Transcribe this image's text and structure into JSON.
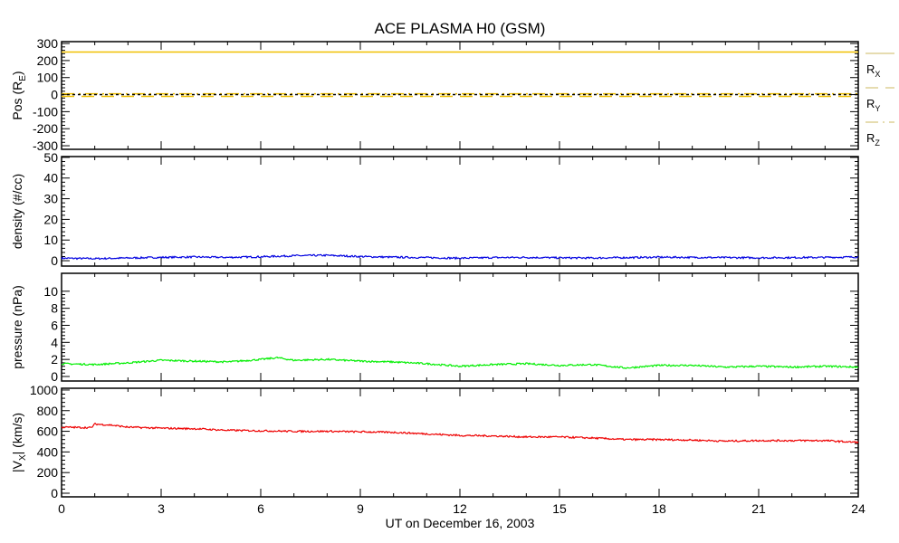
{
  "chart_data": {
    "title": "ACE PLASMA H0 (GSM)",
    "xlabel": "UT on December 16, 2003",
    "xlim": [
      0,
      24
    ],
    "xticks": [
      "0",
      "3",
      "6",
      "9",
      "12",
      "15",
      "18",
      "21",
      "24"
    ],
    "panels": [
      {
        "type": "line",
        "ylabel": "Pos (R",
        "ylabel_sub": "E",
        "ylabel_end": ")",
        "ylim": [
          -321,
          311
        ],
        "yticks": [
          "300",
          "200",
          "100",
          "0",
          "-100",
          "-200",
          "-300"
        ],
        "ytick_values": [
          300,
          200,
          100,
          0,
          -100,
          -200,
          -300
        ],
        "series": [
          {
            "name": "R",
            "sub": "X",
            "style": "solid",
            "color": "#f0c000",
            "x": [
              0,
              24
            ],
            "values": [
              250,
              250
            ]
          },
          {
            "name": "R",
            "sub": "Y",
            "style": "dashed",
            "color": "#f0c000",
            "x": [
              0,
              24
            ],
            "values": [
              -10,
              -10
            ]
          },
          {
            "name": "R",
            "sub": "Z",
            "style": "dashdot",
            "color": "#f0c000",
            "x": [
              0,
              24
            ],
            "values": [
              5,
              5
            ]
          },
          {
            "name": "zero",
            "style": "dotted",
            "color": "#000000",
            "x": [
              0,
              24
            ],
            "values": [
              0,
              0
            ]
          }
        ]
      },
      {
        "type": "line",
        "ylabel": "density (#/cc)",
        "ylim": [
          -2.6,
          50.4
        ],
        "yticks": [
          "50",
          "40",
          "30",
          "20",
          "10",
          "0"
        ],
        "ytick_values": [
          50,
          40,
          30,
          20,
          10,
          0
        ],
        "series": [
          {
            "name": "density",
            "color": "#0000e0",
            "x": [
              0,
              1,
              2,
              3,
              4,
              5,
              6,
              7,
              8,
              9,
              10,
              11,
              12,
              13,
              14,
              15,
              16,
              17,
              18,
              19,
              20,
              21,
              22,
              23,
              24
            ],
            "values": [
              1.2,
              1.0,
              1.3,
              1.6,
              1.8,
              1.6,
              1.9,
              2.4,
              2.6,
              2.0,
              1.7,
              1.5,
              1.2,
              1.5,
              1.6,
              1.4,
              1.3,
              1.5,
              1.7,
              1.6,
              1.5,
              1.4,
              1.5,
              1.6,
              1.8
            ]
          }
        ]
      },
      {
        "type": "line",
        "ylabel": "pressure (nPa)",
        "ylim": [
          -0.53,
          12.1
        ],
        "yticks": [
          "10",
          "8",
          "6",
          "4",
          "2",
          "0"
        ],
        "ytick_values": [
          10,
          8,
          6,
          4,
          2,
          0
        ],
        "series": [
          {
            "name": "pressure",
            "color": "#00ee00",
            "x": [
              0,
              1,
              2,
              3,
              4,
              5,
              6,
              6.5,
              7,
              8,
              9,
              10,
              11,
              12,
              13,
              14,
              15,
              16,
              17,
              18,
              19,
              20,
              21,
              22,
              23,
              24
            ],
            "values": [
              1.5,
              1.4,
              1.6,
              1.9,
              1.8,
              1.7,
              2.0,
              2.2,
              1.9,
              2.0,
              1.8,
              1.7,
              1.5,
              1.2,
              1.4,
              1.5,
              1.3,
              1.4,
              1.0,
              1.3,
              1.3,
              1.1,
              1.2,
              1.1,
              1.2,
              1.1
            ]
          }
        ]
      },
      {
        "type": "line",
        "ylabel": "|V",
        "ylabel_sub": "X",
        "ylabel_end": "| (km/s)",
        "ylim": [
          -35,
          1017
        ],
        "yticks": [
          "1000",
          "800",
          "600",
          "400",
          "200",
          "0"
        ],
        "ytick_values": [
          1000,
          800,
          600,
          400,
          200,
          0
        ],
        "series": [
          {
            "name": "Vx",
            "color": "#ee0000",
            "x": [
              0,
              0.9,
              1.0,
              1.5,
              2,
              3,
              4,
              5,
              6,
              7,
              8,
              9,
              10,
              11,
              12,
              13,
              14,
              15,
              16,
              17,
              18,
              19,
              20,
              21,
              22,
              23,
              23.8,
              24
            ],
            "values": [
              640,
              635,
              670,
              660,
              640,
              630,
              625,
              610,
              605,
              600,
              600,
              595,
              590,
              575,
              560,
              555,
              545,
              545,
              535,
              520,
              520,
              515,
              505,
              510,
              510,
              510,
              495,
              495
            ]
          }
        ]
      }
    ]
  }
}
